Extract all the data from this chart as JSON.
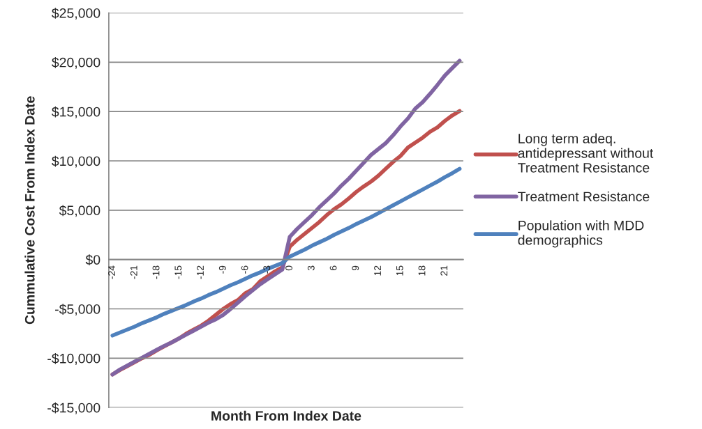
{
  "chart_data": {
    "type": "line",
    "xlabel": "Month From Index Date",
    "ylabel": "Cummulative Cost From Index Date",
    "categories": [
      "-24",
      null,
      null,
      "-21",
      null,
      null,
      "-18",
      null,
      null,
      "-15",
      null,
      null,
      "-12",
      null,
      null,
      "-9",
      null,
      null,
      "-6",
      null,
      null,
      "-3",
      null,
      null,
      "0",
      null,
      null,
      "3",
      null,
      null,
      "6",
      null,
      null,
      "9",
      null,
      null,
      "12",
      null,
      null,
      "15",
      null,
      null,
      "18",
      null,
      null,
      "21",
      null,
      null
    ],
    "series": [
      {
        "name": "Long term adeq.\nantidepressant without\nTreatment Resistance",
        "color": "#c0504d",
        "values": [
          -11650,
          -11200,
          -10800,
          -10400,
          -10000,
          -9650,
          -9200,
          -8800,
          -8400,
          -8000,
          -7500,
          -7100,
          -6700,
          -6200,
          -5600,
          -5000,
          -4500,
          -4100,
          -3400,
          -3000,
          -2200,
          -1700,
          -1200,
          -800,
          1300,
          2000,
          2600,
          3200,
          3800,
          4500,
          5100,
          5600,
          6200,
          6850,
          7400,
          7900,
          8500,
          9200,
          9900,
          10500,
          11350,
          11850,
          12350,
          12950,
          13400,
          14050,
          14600,
          15050
        ]
      },
      {
        "name": "Treatment Resistance",
        "color": "#8064a2",
        "values": [
          -11650,
          -11150,
          -10750,
          -10350,
          -9950,
          -9550,
          -9150,
          -8750,
          -8400,
          -8000,
          -7600,
          -7200,
          -6800,
          -6400,
          -6050,
          -5600,
          -5000,
          -4350,
          -3700,
          -3100,
          -2500,
          -2000,
          -1500,
          -1000,
          2300,
          3100,
          3800,
          4500,
          5300,
          6000,
          6700,
          7500,
          8200,
          9000,
          9800,
          10600,
          11200,
          11800,
          12600,
          13500,
          14300,
          15300,
          15950,
          16800,
          17700,
          18650,
          19400,
          20150
        ]
      },
      {
        "name": "Population with MDD\ndemographics",
        "color": "#4f81bd",
        "values": [
          -7700,
          -7400,
          -7100,
          -6800,
          -6450,
          -6150,
          -5850,
          -5500,
          -5200,
          -4900,
          -4600,
          -4250,
          -3950,
          -3600,
          -3300,
          -2950,
          -2600,
          -2300,
          -1950,
          -1600,
          -1300,
          -950,
          -650,
          -350,
          300,
          650,
          1000,
          1400,
          1750,
          2100,
          2500,
          2850,
          3200,
          3600,
          3950,
          4300,
          4700,
          5100,
          5500,
          5900,
          6300,
          6700,
          7100,
          7500,
          7900,
          8350,
          8750,
          9200
        ]
      }
    ],
    "ylim": [
      -15000,
      25000
    ],
    "yticks": [
      {
        "value": -15000,
        "label": "-$15,000"
      },
      {
        "value": -10000,
        "label": "-$10,000"
      },
      {
        "value": -5000,
        "label": "-$5,000"
      },
      {
        "value": 0,
        "label": "$0"
      },
      {
        "value": 5000,
        "label": "$5,000"
      },
      {
        "value": 10000,
        "label": "$10,000"
      },
      {
        "value": 15000,
        "label": "$15,000"
      },
      {
        "value": 20000,
        "label": "$20,000"
      },
      {
        "value": 25000,
        "label": "$25,000"
      }
    ],
    "grid": "y",
    "legend": "right",
    "marker": "none",
    "line_style": "solid"
  }
}
